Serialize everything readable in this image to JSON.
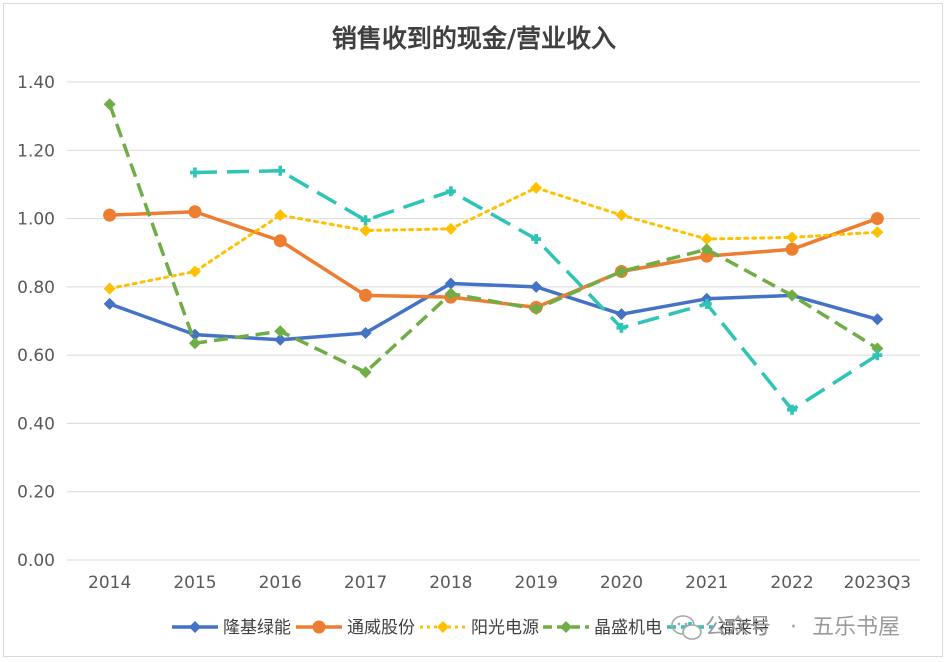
{
  "chart_data": {
    "type": "line",
    "title": "销售收到的现金/营业收入",
    "categories": [
      "2014",
      "2015",
      "2016",
      "2017",
      "2018",
      "2019",
      "2020",
      "2021",
      "2022",
      "2023Q3"
    ],
    "y_ticks": [
      "0.00",
      "0.20",
      "0.40",
      "0.60",
      "0.80",
      "1.00",
      "1.20",
      "1.40"
    ],
    "ylim": [
      0,
      1.4
    ],
    "grid": true,
    "legend_position": "bottom",
    "series": [
      {
        "name": "隆基绿能",
        "color": "#4472c4",
        "dash": "solid",
        "marker": "diamond",
        "values": [
          0.75,
          0.66,
          0.645,
          0.665,
          0.81,
          0.8,
          0.72,
          0.765,
          0.775,
          0.705
        ]
      },
      {
        "name": "通威股份",
        "color": "#ed7d31",
        "dash": "solid",
        "marker": "circle",
        "values": [
          1.01,
          1.02,
          0.935,
          0.775,
          0.77,
          0.74,
          0.845,
          0.89,
          0.91,
          1.0
        ]
      },
      {
        "name": "阳光电源",
        "color": "#ffc000",
        "dash": "dot",
        "marker": "diamond",
        "values": [
          0.795,
          0.845,
          1.01,
          0.965,
          0.97,
          1.09,
          1.01,
          0.94,
          0.945,
          0.96
        ]
      },
      {
        "name": "晶盛机电",
        "color": "#70ad47",
        "dash": "dash",
        "marker": "diamond",
        "values": [
          1.335,
          0.635,
          0.67,
          0.55,
          0.78,
          0.735,
          0.845,
          0.91,
          0.775,
          0.62
        ]
      },
      {
        "name": "福莱特",
        "color": "#2ec4b6",
        "dash": "longdash",
        "marker": "cross",
        "values": [
          null,
          1.135,
          1.14,
          0.995,
          1.08,
          0.94,
          0.68,
          0.75,
          0.44,
          0.6
        ]
      }
    ]
  },
  "watermark": {
    "brand": "公众号",
    "separator": "·",
    "name": "五乐书屋"
  }
}
